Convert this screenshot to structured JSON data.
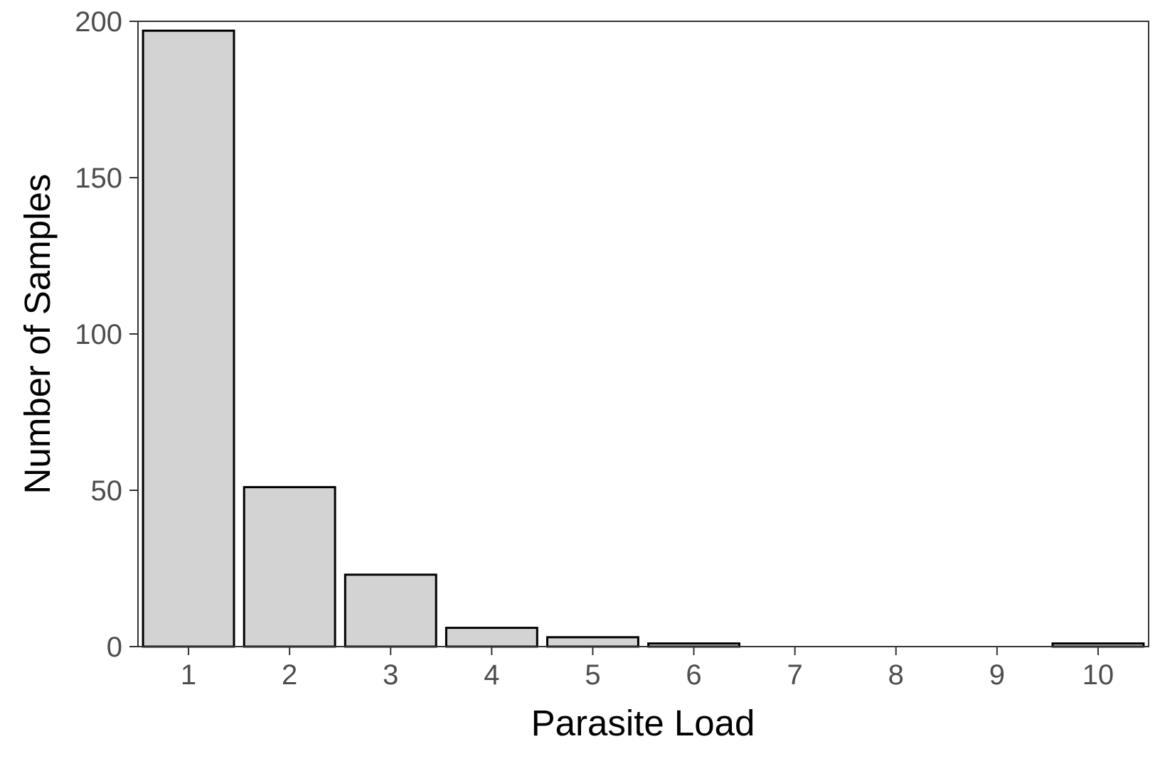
{
  "chart_data": {
    "type": "bar",
    "title": "",
    "xlabel": "Parasite Load",
    "ylabel": "Number of Samples",
    "categories": [
      "1",
      "2",
      "3",
      "4",
      "5",
      "6",
      "7",
      "8",
      "9",
      "10"
    ],
    "values": [
      197,
      51,
      23,
      6,
      3,
      1,
      0,
      0,
      0,
      1
    ],
    "ylim": [
      0,
      200
    ],
    "yticks": [
      "0",
      "50",
      "100",
      "150",
      "200"
    ],
    "grid": false,
    "legend": "none",
    "colors": {
      "bar_fill": "#d3d3d3",
      "bar_stroke": "#000000",
      "panel_border": "#333333",
      "tick_text": "#4d4d4d"
    }
  }
}
